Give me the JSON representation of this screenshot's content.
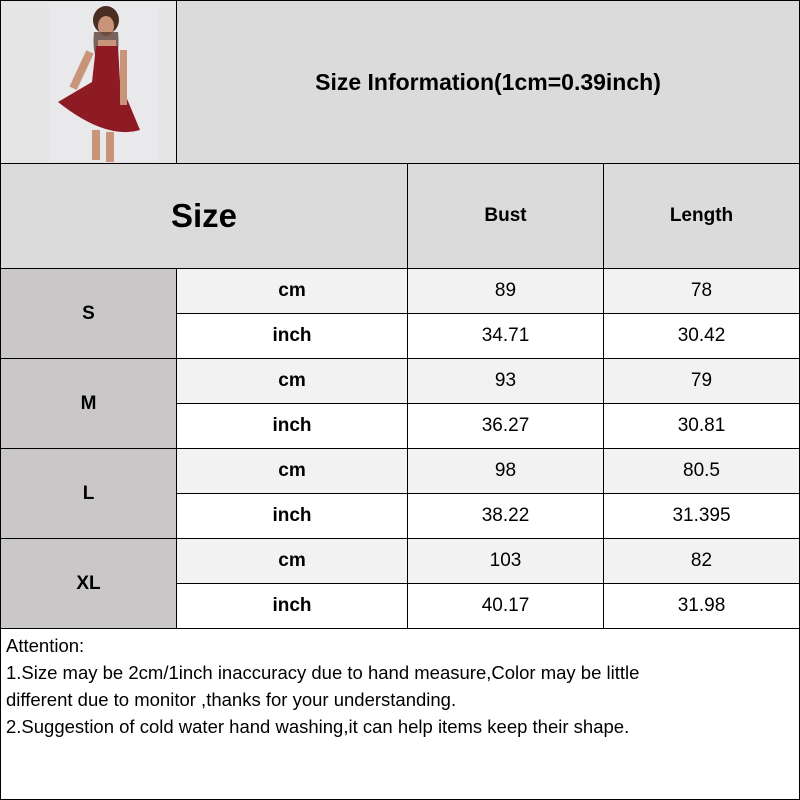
{
  "title": "Size Information(1cm=0.39inch)",
  "header": {
    "size": "Size",
    "columns": [
      "Bust",
      "Length"
    ]
  },
  "photo": {
    "icon": "model-red-mini-dress-photo"
  },
  "rows": [
    {
      "size": "S",
      "cm": [
        "89",
        "78"
      ],
      "inch": [
        "34.71",
        "30.42"
      ]
    },
    {
      "size": "M",
      "cm": [
        "93",
        "79"
      ],
      "inch": [
        "36.27",
        "30.81"
      ]
    },
    {
      "size": "L",
      "cm": [
        "98",
        "80.5"
      ],
      "inch": [
        "38.22",
        "31.395"
      ]
    },
    {
      "size": "XL",
      "cm": [
        "103",
        "82"
      ],
      "inch": [
        "40.17",
        "31.98"
      ]
    }
  ],
  "units": {
    "cm": "cm",
    "inch": "inch"
  },
  "attention": [
    "Attention:",
    "1.Size may be 2cm/1inch inaccuracy due to hand measure,Color may be little",
    "different due to monitor ,thanks for your understanding.",
    "2.Suggestion of cold water hand washing,it can help items keep their shape."
  ],
  "colors": {
    "header": "#dcdbdb",
    "size_cell": "#c9c7c7",
    "cm_row": "#f2f2f2",
    "inch_row": "#ffffff",
    "border": "#000000"
  }
}
